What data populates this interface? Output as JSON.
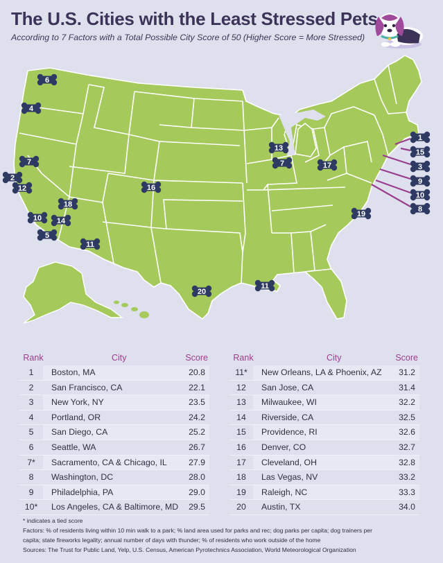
{
  "title": "The U.S. Cities with the Least Stressed Pets",
  "subtitle": "According to 7 Factors with a Total Possible City Score of 50 (Higher Score = More Stressed)",
  "map": {
    "markers": [
      "6",
      "4",
      "7",
      "2",
      "12",
      "18",
      "10",
      "14",
      "5",
      "11",
      "16",
      "20",
      "11",
      "13",
      "7",
      "17",
      "19",
      "1",
      "15",
      "3",
      "9",
      "10",
      "8"
    ]
  },
  "table": {
    "headers": {
      "rank": "Rank",
      "city": "City",
      "score": "Score"
    },
    "left": [
      {
        "rank": "1",
        "city": "Boston, MA",
        "score": "20.8"
      },
      {
        "rank": "2",
        "city": "San Francisco, CA",
        "score": "22.1"
      },
      {
        "rank": "3",
        "city": "New York, NY",
        "score": "23.5"
      },
      {
        "rank": "4",
        "city": "Portland, OR",
        "score": "24.2"
      },
      {
        "rank": "5",
        "city": "San Diego, CA",
        "score": "25.2"
      },
      {
        "rank": "6",
        "city": "Seattle, WA",
        "score": "26.7"
      },
      {
        "rank": "7*",
        "city": "Sacramento, CA & Chicago, IL",
        "score": "27.9"
      },
      {
        "rank": "8",
        "city": "Washington, DC",
        "score": "28.0"
      },
      {
        "rank": "9",
        "city": "Philadelphia, PA",
        "score": "29.0"
      },
      {
        "rank": "10*",
        "city": "Los Angeles, CA & Baltimore, MD",
        "score": "29.5"
      }
    ],
    "right": [
      {
        "rank": "11*",
        "city": "New Orleans, LA & Phoenix, AZ",
        "score": "31.2"
      },
      {
        "rank": "12",
        "city": "San Jose, CA",
        "score": "31.4"
      },
      {
        "rank": "13",
        "city": "Milwaukee, WI",
        "score": "32.2"
      },
      {
        "rank": "14",
        "city": "Riverside, CA",
        "score": "32.5"
      },
      {
        "rank": "15",
        "city": "Providence, RI",
        "score": "32.6"
      },
      {
        "rank": "16",
        "city": "Denver, CO",
        "score": "32.7"
      },
      {
        "rank": "17",
        "city": "Cleveland, OH",
        "score": "32.8"
      },
      {
        "rank": "18",
        "city": "Las Vegas, NV",
        "score": "33.2"
      },
      {
        "rank": "19",
        "city": "Raleigh, NC",
        "score": "33.3"
      },
      {
        "rank": "20",
        "city": "Austin, TX",
        "score": "34.0"
      }
    ]
  },
  "footer": {
    "tie_note": "* indicates a tied score",
    "factors_1": "Factors: % of residents living within 10 min walk to a park; % land area used for parks and rec; dog parks per capita; dog trainers per",
    "factors_2": "capita; state fireworks legality; annual number of days with thunder; % of residents who work outside of the home",
    "sources": "Sources: The Trust for Public Land, Yelp, U.S. Census, American Pyrotechnics Association, World Meteorological Organization"
  },
  "colors": {
    "map_green": "#a5c95a",
    "state_border": "#ffffff",
    "bone": "#2f3a63",
    "accent": "#9a3d8c",
    "background": "#dfe0ee"
  }
}
